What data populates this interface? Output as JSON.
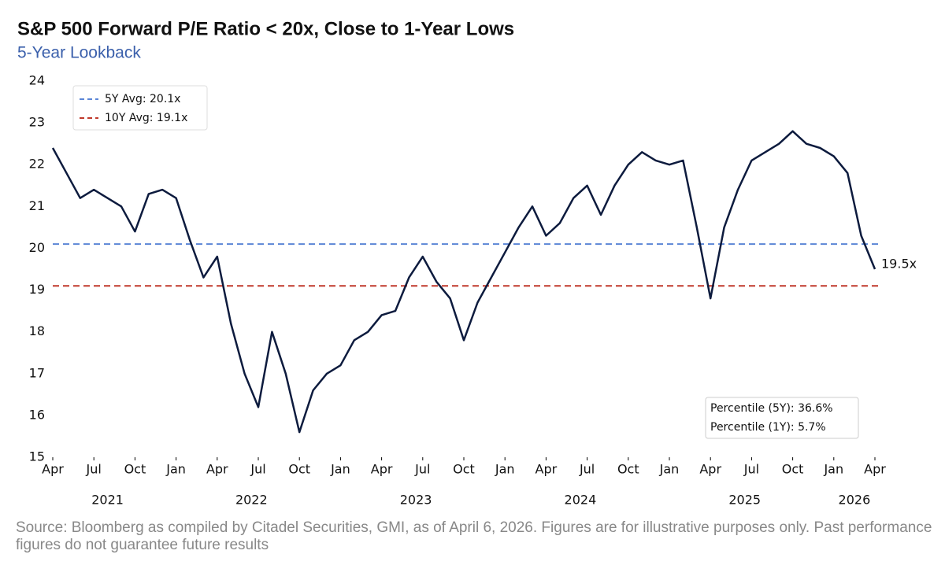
{
  "chart_data": {
    "type": "line",
    "title": "S&P 500 Forward P/E Ratio < 20x, Close to 1-Year Lows",
    "subtitle": "5-Year Lookback",
    "source": "Source: Bloomberg as compiled by Citadel Securities, GMI, as of April 6, 2026. Figures are for illustrative purposes only. Past performance figures do not guarantee future results",
    "x": [
      "2021-04",
      "2021-05",
      "2021-06",
      "2021-07",
      "2021-08",
      "2021-09",
      "2021-10",
      "2021-11",
      "2021-12",
      "2022-01",
      "2022-02",
      "2022-03",
      "2022-04",
      "2022-05",
      "2022-06",
      "2022-07",
      "2022-08",
      "2022-09",
      "2022-10",
      "2022-11",
      "2022-12",
      "2023-01",
      "2023-02",
      "2023-03",
      "2023-04",
      "2023-05",
      "2023-06",
      "2023-07",
      "2023-08",
      "2023-09",
      "2023-10",
      "2023-11",
      "2023-12",
      "2024-01",
      "2024-02",
      "2024-03",
      "2024-04",
      "2024-05",
      "2024-06",
      "2024-07",
      "2024-08",
      "2024-09",
      "2024-10",
      "2024-11",
      "2024-12",
      "2025-01",
      "2025-02",
      "2025-03",
      "2025-04",
      "2025-05",
      "2025-06",
      "2025-07",
      "2025-08",
      "2025-09",
      "2025-10",
      "2025-11",
      "2025-12",
      "2026-01",
      "2026-02",
      "2026-03",
      "2026-04"
    ],
    "series": [
      {
        "name": "S&P 500 Forward P/E",
        "color": "#0d1b3e",
        "values": [
          22.4,
          21.8,
          21.2,
          21.4,
          21.2,
          21.0,
          20.4,
          21.3,
          21.4,
          21.2,
          20.2,
          19.3,
          19.8,
          18.2,
          17.0,
          16.2,
          18.0,
          17.0,
          15.6,
          16.6,
          17.0,
          17.2,
          17.8,
          18.0,
          18.4,
          18.5,
          19.3,
          19.8,
          19.2,
          18.8,
          17.8,
          18.7,
          19.3,
          19.9,
          20.5,
          21.0,
          20.3,
          20.6,
          21.2,
          21.5,
          20.8,
          21.5,
          22.0,
          22.3,
          22.1,
          22.0,
          22.1,
          20.5,
          18.8,
          20.5,
          21.4,
          22.1,
          22.3,
          22.5,
          22.8,
          22.5,
          22.4,
          22.2,
          21.8,
          20.3,
          19.5
        ],
        "last_value_label": "19.5x"
      }
    ],
    "reference_lines": [
      {
        "name": "5Y Avg: 20.1x",
        "value": 20.1,
        "color": "#5b86d6"
      },
      {
        "name": "10Y Avg: 19.1x",
        "value": 19.1,
        "color": "#c0392b"
      }
    ],
    "annotations": [
      "Percentile (5Y): 36.6%",
      "Percentile (1Y): 5.7%"
    ],
    "xlim": [
      "2021-04",
      "2026-04"
    ],
    "xticks": [
      {
        "value": "2021-04",
        "label": "Apr"
      },
      {
        "value": "2021-07",
        "label": "Jul"
      },
      {
        "value": "2021-10",
        "label": "Oct"
      },
      {
        "value": "2022-01",
        "label": "Jan"
      },
      {
        "value": "2022-04",
        "label": "Apr"
      },
      {
        "value": "2022-07",
        "label": "Jul"
      },
      {
        "value": "2022-10",
        "label": "Oct"
      },
      {
        "value": "2023-01",
        "label": "Jan"
      },
      {
        "value": "2023-04",
        "label": "Apr"
      },
      {
        "value": "2023-07",
        "label": "Jul"
      },
      {
        "value": "2023-10",
        "label": "Oct"
      },
      {
        "value": "2024-01",
        "label": "Jan"
      },
      {
        "value": "2024-04",
        "label": "Apr"
      },
      {
        "value": "2024-07",
        "label": "Jul"
      },
      {
        "value": "2024-10",
        "label": "Oct"
      },
      {
        "value": "2025-01",
        "label": "Jan"
      },
      {
        "value": "2025-04",
        "label": "Apr"
      },
      {
        "value": "2025-07",
        "label": "Jul"
      },
      {
        "value": "2025-10",
        "label": "Oct"
      },
      {
        "value": "2026-01",
        "label": "Jan"
      },
      {
        "value": "2026-04",
        "label": "Apr"
      }
    ],
    "year_labels": [
      "2021",
      "2022",
      "2023",
      "2024",
      "2025",
      "2026"
    ],
    "ylim": [
      15,
      24
    ],
    "yticks": [
      15,
      16,
      17,
      18,
      19,
      20,
      21,
      22,
      23,
      24
    ],
    "grid": false
  }
}
